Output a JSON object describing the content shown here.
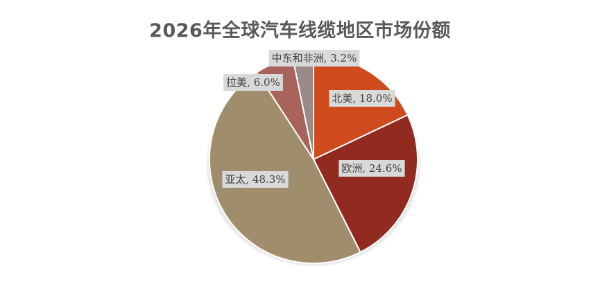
{
  "chart_data": {
    "type": "pie",
    "title": "2026年全球汽车线缆地区市场份额",
    "categories": [
      "北美",
      "欧洲",
      "亚太",
      "拉美",
      "中东和非洲"
    ],
    "values": [
      18.0,
      24.6,
      48.3,
      6.0,
      3.2
    ],
    "unit": "%",
    "labels": [
      "北美, 18.0%",
      "欧洲, 24.6%",
      "亚太, 48.3%",
      "拉美, 6.0%",
      "中东和非洲, 3.2%"
    ],
    "colors": [
      "#cf4b1e",
      "#912b20",
      "#a08d6c",
      "#a8645a",
      "#9a8987"
    ],
    "legend": "none",
    "grid": false
  }
}
